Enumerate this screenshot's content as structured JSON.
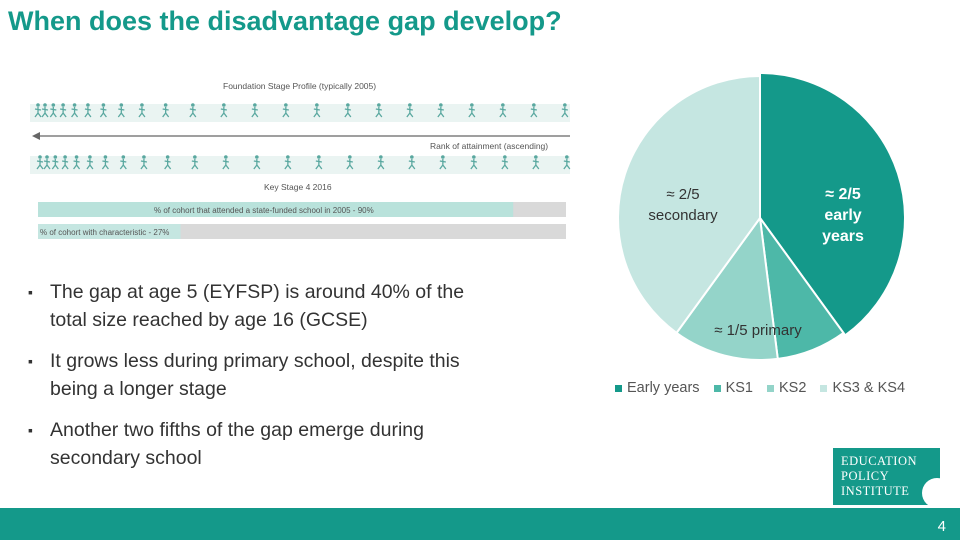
{
  "slide": {
    "title": "When does the disadvantage gap develop?",
    "page_number": "4"
  },
  "diagram": {
    "top_label": "Foundation Stage Profile (typically 2005)",
    "arrow_label": "Rank of attainment (ascending)",
    "bottom_label": "Key Stage 4 2016",
    "bar1_label": "% of cohort that attended a state-funded school in 2005 - 90%",
    "bar1_fraction": 0.9,
    "bar2_label": "% of cohort with characteristic - 27%",
    "bar2_fraction": 0.27
  },
  "bullets": [
    "The gap at age 5 (EYFSP) is around 40% of the total size reached by age 16 (GCSE)",
    "It grows less during primary school, despite this being a longer stage",
    "Another two fifths of the gap emerge during secondary school"
  ],
  "pie_labels": {
    "early_years": "≈ 2/5\nearly\nyears",
    "primary": "≈ 1/5 primary",
    "secondary": "≈ 2/5\nsecondary"
  },
  "legend": [
    "Early years",
    "KS1",
    "KS2",
    "KS3 & KS4"
  ],
  "colors": {
    "accent": "#14998a",
    "ks1": "#4db8a8",
    "ks2": "#94d4c9",
    "ks3_ks4": "#c5e6e1",
    "figures": "#5aa8a0",
    "bar_gray": "#d9d9d9"
  },
  "chart_data": {
    "type": "pie",
    "title": "",
    "labels": [
      "Early years",
      "KS1",
      "KS2",
      "KS3 & KS4"
    ],
    "values": [
      40,
      8,
      12,
      40
    ],
    "unit": "% of gap at age 16"
  },
  "logo": {
    "lines": [
      "EDUCATION",
      "POLICY",
      "INSTITUTE"
    ]
  }
}
